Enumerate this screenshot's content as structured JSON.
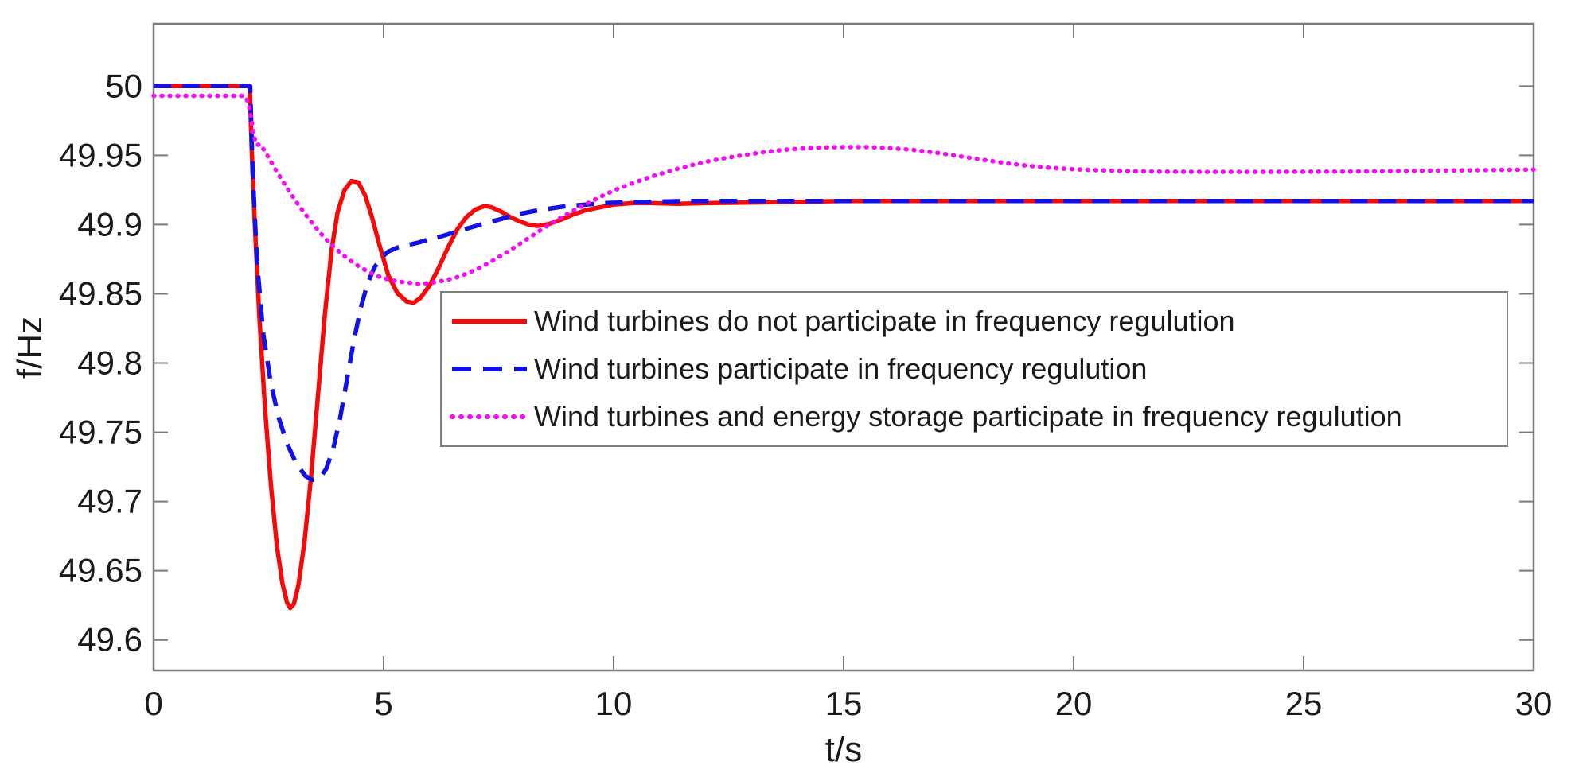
{
  "figure": {
    "background": "#ffffff",
    "axis_color": "#7a7a7a",
    "tick_text_color": "#1a1a1a",
    "legend": {
      "border_color": "#7f7f7f",
      "background": "#ffffff"
    }
  },
  "chart_data": {
    "type": "line",
    "title": "",
    "xlabel": "t/s",
    "ylabel": "f/Hz",
    "xlim": [
      0,
      30
    ],
    "ylim": [
      49.578,
      50.045
    ],
    "x_ticks": [
      0,
      5,
      10,
      15,
      20,
      25,
      30
    ],
    "x_tick_labels": [
      "0",
      "5",
      "10",
      "15",
      "20",
      "25",
      "30"
    ],
    "y_ticks": [
      50,
      49.95,
      49.9,
      49.85,
      49.8,
      49.75,
      49.7,
      49.65,
      49.6
    ],
    "y_tick_labels": [
      "50",
      "49.95",
      "49.9",
      "49.85",
      "49.8",
      "49.75",
      "49.7",
      "49.65",
      "49.6"
    ],
    "grid": false,
    "legend_position": "inside upper right",
    "disturbance_time_s": 2,
    "series": [
      {
        "name": "Wind turbines do not participate in frequency regulution",
        "color": "#f60909",
        "style": "solid",
        "width": 5.5,
        "min_point": {
          "t": 2.95,
          "f": 49.623
        },
        "settle_value": 49.917,
        "points": [
          [
            0,
            50
          ],
          [
            0.8,
            50
          ],
          [
            1.6,
            50
          ],
          [
            2.0,
            50
          ],
          [
            2.09,
            50
          ],
          [
            2.13,
            49.957
          ],
          [
            2.2,
            49.9
          ],
          [
            2.3,
            49.833
          ],
          [
            2.42,
            49.768
          ],
          [
            2.55,
            49.712
          ],
          [
            2.68,
            49.668
          ],
          [
            2.8,
            49.641
          ],
          [
            2.9,
            49.627
          ],
          [
            2.97,
            49.623
          ],
          [
            3.05,
            49.626
          ],
          [
            3.15,
            49.64
          ],
          [
            3.28,
            49.671
          ],
          [
            3.42,
            49.717
          ],
          [
            3.57,
            49.775
          ],
          [
            3.72,
            49.834
          ],
          [
            3.87,
            49.882
          ],
          [
            4.0,
            49.909
          ],
          [
            4.15,
            49.925
          ],
          [
            4.3,
            49.9315
          ],
          [
            4.45,
            49.9305
          ],
          [
            4.6,
            49.921
          ],
          [
            4.75,
            49.905
          ],
          [
            4.9,
            49.8865
          ],
          [
            5.1,
            49.8635
          ],
          [
            5.3,
            49.8505
          ],
          [
            5.5,
            49.8445
          ],
          [
            5.65,
            49.8435
          ],
          [
            5.8,
            49.847
          ],
          [
            6.0,
            49.856
          ],
          [
            6.2,
            49.869
          ],
          [
            6.4,
            49.8835
          ],
          [
            6.6,
            49.8965
          ],
          [
            6.8,
            49.9055
          ],
          [
            7.0,
            49.911
          ],
          [
            7.2,
            49.9135
          ],
          [
            7.35,
            49.9125
          ],
          [
            7.55,
            49.9095
          ],
          [
            7.75,
            49.9055
          ],
          [
            7.95,
            49.9025
          ],
          [
            8.15,
            49.9
          ],
          [
            8.35,
            49.899
          ],
          [
            8.6,
            49.9005
          ],
          [
            8.85,
            49.9035
          ],
          [
            9.1,
            49.907
          ],
          [
            9.4,
            49.9105
          ],
          [
            9.7,
            49.9125
          ],
          [
            10.0,
            49.9145
          ],
          [
            10.4,
            49.9155
          ],
          [
            10.8,
            49.9155
          ],
          [
            11.4,
            49.915
          ],
          [
            12.0,
            49.9155
          ],
          [
            13.0,
            49.916
          ],
          [
            14.0,
            49.9165
          ],
          [
            15.0,
            49.917
          ],
          [
            17.0,
            49.917
          ],
          [
            19.0,
            49.917
          ],
          [
            21.0,
            49.917
          ],
          [
            24.0,
            49.917
          ],
          [
            27.0,
            49.917
          ],
          [
            30.0,
            49.917
          ]
        ]
      },
      {
        "name": "Wind turbines participate in frequency regulution",
        "color": "#1111e8",
        "style": "dashed",
        "width": 5.5,
        "min_point": {
          "t": 3.45,
          "f": 49.7155
        },
        "settle_value": 49.917,
        "points": [
          [
            0,
            50
          ],
          [
            0.8,
            50
          ],
          [
            1.6,
            50
          ],
          [
            2.0,
            50
          ],
          [
            2.1,
            50
          ],
          [
            2.15,
            49.94
          ],
          [
            2.25,
            49.873
          ],
          [
            2.38,
            49.822
          ],
          [
            2.55,
            49.785
          ],
          [
            2.72,
            49.7605
          ],
          [
            2.9,
            49.742
          ],
          [
            3.1,
            49.7275
          ],
          [
            3.3,
            49.7185
          ],
          [
            3.45,
            49.7155
          ],
          [
            3.6,
            49.7165
          ],
          [
            3.75,
            49.7235
          ],
          [
            3.9,
            49.7375
          ],
          [
            4.05,
            49.7595
          ],
          [
            4.2,
            49.7875
          ],
          [
            4.35,
            49.8155
          ],
          [
            4.5,
            49.8395
          ],
          [
            4.65,
            49.8575
          ],
          [
            4.8,
            49.869
          ],
          [
            4.95,
            49.876
          ],
          [
            5.1,
            49.8805
          ],
          [
            5.3,
            49.8835
          ],
          [
            5.5,
            49.885
          ],
          [
            5.75,
            49.887
          ],
          [
            6.0,
            49.8895
          ],
          [
            6.25,
            49.8915
          ],
          [
            6.5,
            49.894
          ],
          [
            6.75,
            49.8965
          ],
          [
            7.0,
            49.899
          ],
          [
            7.25,
            49.9015
          ],
          [
            7.5,
            49.9035
          ],
          [
            7.75,
            49.906
          ],
          [
            8.0,
            49.908
          ],
          [
            8.3,
            49.91
          ],
          [
            8.6,
            49.9115
          ],
          [
            9.0,
            49.9135
          ],
          [
            9.4,
            49.9145
          ],
          [
            9.8,
            49.9155
          ],
          [
            10.2,
            49.916
          ],
          [
            10.8,
            49.9165
          ],
          [
            11.5,
            49.917
          ],
          [
            13.0,
            49.917
          ],
          [
            15.0,
            49.917
          ],
          [
            18.0,
            49.917
          ],
          [
            21.0,
            49.917
          ],
          [
            24.0,
            49.917
          ],
          [
            27.0,
            49.917
          ],
          [
            30.0,
            49.917
          ]
        ]
      },
      {
        "name": "Wind turbines and energy storage participate in frequency regulution",
        "color": "#f50df5",
        "style": "dotted",
        "width": 5.5,
        "min_point": {
          "t": 5.7,
          "f": 49.857
        },
        "peak_point": {
          "t": 15,
          "f": 49.956
        },
        "end_value": 49.94,
        "points": [
          [
            0,
            49.993
          ],
          [
            0.8,
            49.993
          ],
          [
            1.6,
            49.993
          ],
          [
            1.98,
            49.993
          ],
          [
            2.06,
            49.988
          ],
          [
            2.12,
            49.978
          ],
          [
            2.18,
            49.964
          ],
          [
            2.24,
            49.9575
          ],
          [
            2.32,
            49.958
          ],
          [
            2.42,
            49.953
          ],
          [
            2.55,
            49.9455
          ],
          [
            2.7,
            49.937
          ],
          [
            2.9,
            49.9265
          ],
          [
            3.1,
            49.9165
          ],
          [
            3.3,
            49.9075
          ],
          [
            3.5,
            49.899
          ],
          [
            3.7,
            49.891
          ],
          [
            3.9,
            49.8845
          ],
          [
            4.1,
            49.8785
          ],
          [
            4.3,
            49.8735
          ],
          [
            4.5,
            49.869
          ],
          [
            4.7,
            49.8655
          ],
          [
            4.9,
            49.8625
          ],
          [
            5.1,
            49.8605
          ],
          [
            5.3,
            49.859
          ],
          [
            5.55,
            49.858
          ],
          [
            5.8,
            49.857
          ],
          [
            6.05,
            49.858
          ],
          [
            6.3,
            49.8595
          ],
          [
            6.55,
            49.8615
          ],
          [
            6.8,
            49.8645
          ],
          [
            7.1,
            49.869
          ],
          [
            7.4,
            49.8745
          ],
          [
            7.7,
            49.8805
          ],
          [
            8.0,
            49.887
          ],
          [
            8.3,
            49.8935
          ],
          [
            8.6,
            49.9
          ],
          [
            8.9,
            49.906
          ],
          [
            9.2,
            49.9115
          ],
          [
            9.5,
            49.9165
          ],
          [
            9.8,
            49.9215
          ],
          [
            10.1,
            49.926
          ],
          [
            10.5,
            49.931
          ],
          [
            10.9,
            49.9355
          ],
          [
            11.3,
            49.9395
          ],
          [
            11.7,
            49.943
          ],
          [
            12.1,
            49.946
          ],
          [
            12.5,
            49.9485
          ],
          [
            12.9,
            49.9505
          ],
          [
            13.3,
            49.9525
          ],
          [
            13.7,
            49.954
          ],
          [
            14.1,
            49.955
          ],
          [
            14.5,
            49.9557
          ],
          [
            15.0,
            49.956
          ],
          [
            15.5,
            49.956
          ],
          [
            16.0,
            49.9553
          ],
          [
            16.5,
            49.954
          ],
          [
            17.0,
            49.952
          ],
          [
            17.5,
            49.9495
          ],
          [
            18.0,
            49.947
          ],
          [
            18.5,
            49.9445
          ],
          [
            19.0,
            49.9425
          ],
          [
            19.5,
            49.941
          ],
          [
            20.0,
            49.94
          ],
          [
            20.5,
            49.9393
          ],
          [
            21.0,
            49.9388
          ],
          [
            21.5,
            49.9385
          ],
          [
            22.0,
            49.9383
          ],
          [
            23.0,
            49.9381
          ],
          [
            24.0,
            49.9381
          ],
          [
            25.0,
            49.9382
          ],
          [
            26.0,
            49.9384
          ],
          [
            27.0,
            49.9387
          ],
          [
            28.0,
            49.939
          ],
          [
            29.0,
            49.9394
          ],
          [
            30.0,
            49.9398
          ]
        ]
      }
    ]
  }
}
